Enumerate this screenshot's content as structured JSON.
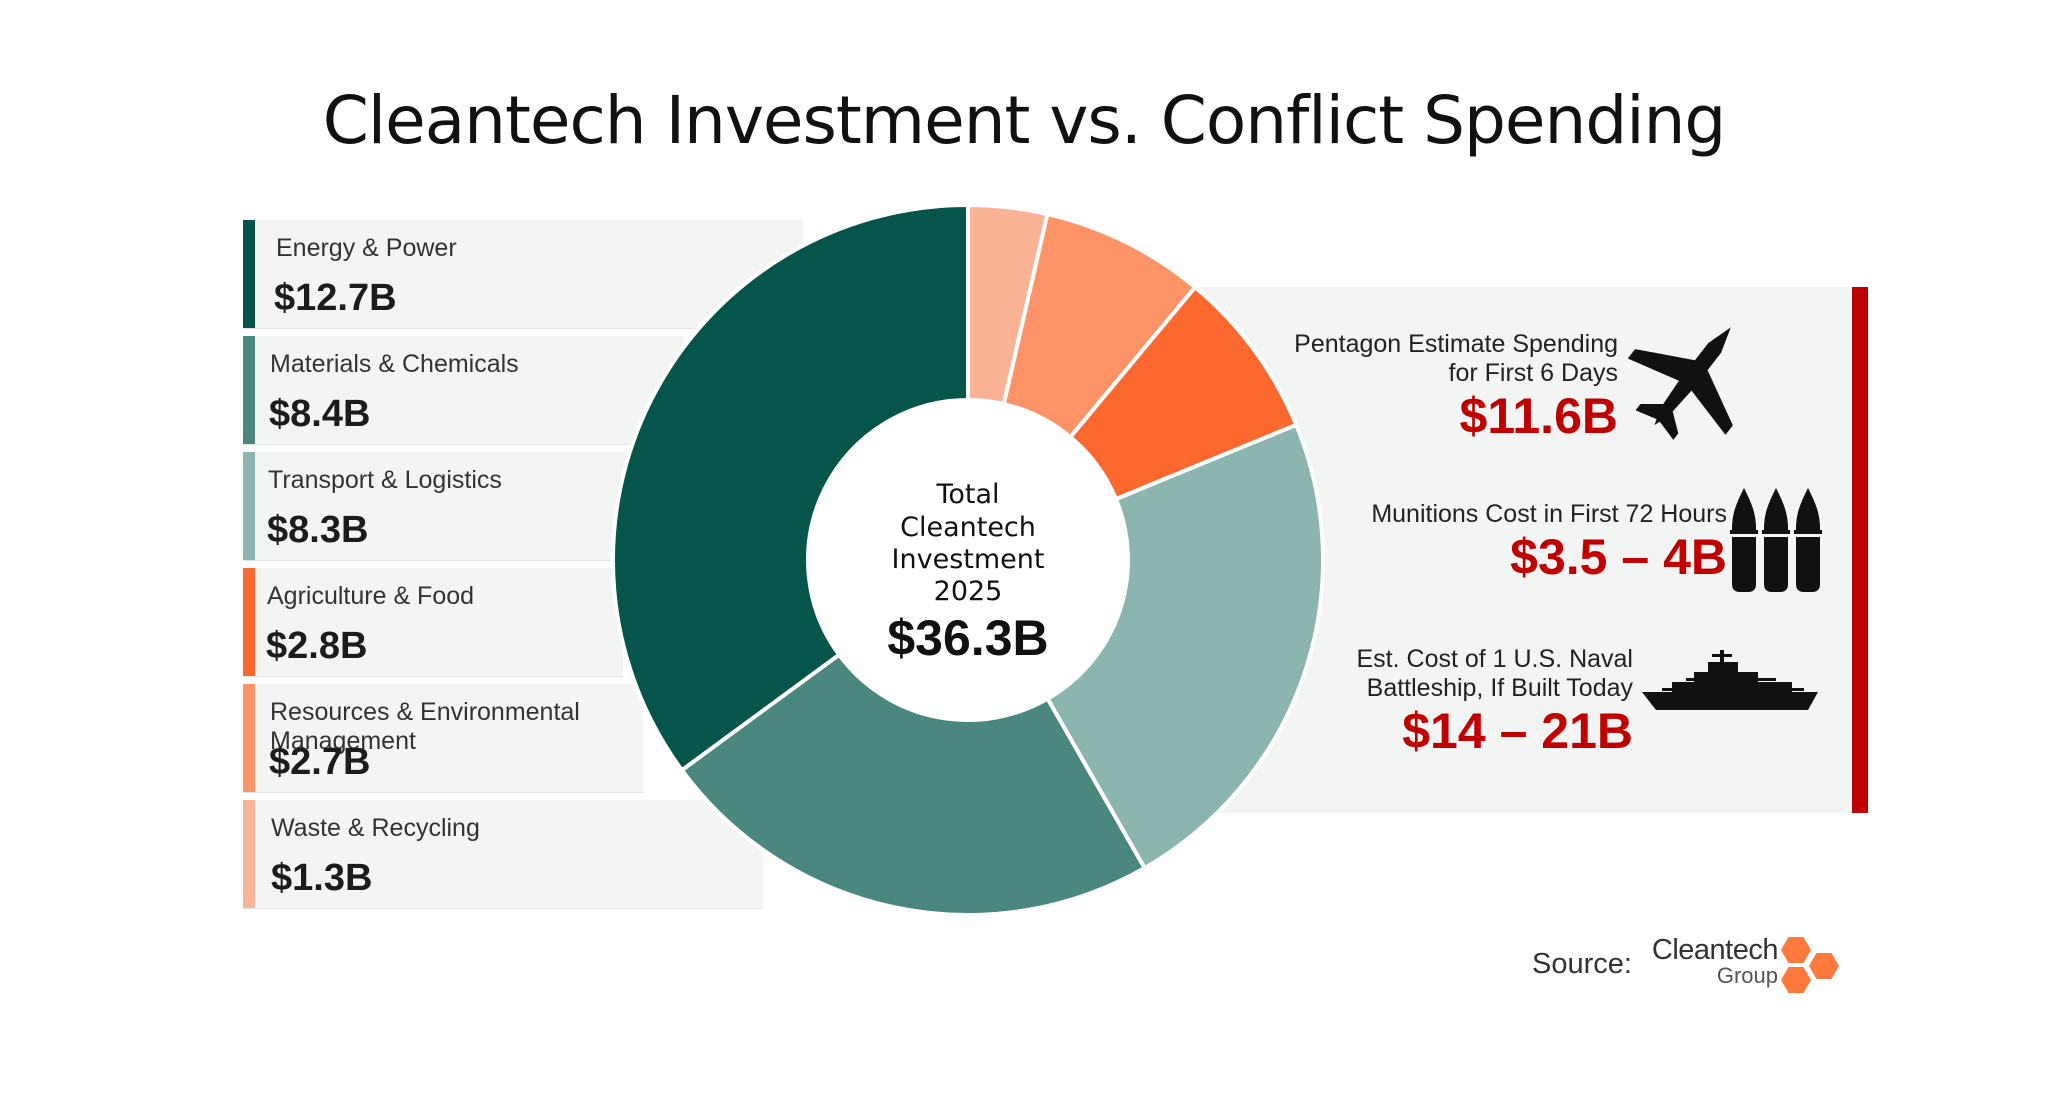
{
  "title": "Cleantech Investment vs. Conflict Spending",
  "chart_data": {
    "type": "pie",
    "title": "Cleantech Investment vs. Conflict Spending",
    "center_label": "Total Cleantech Investment 2025",
    "center_value": "$36.3B",
    "total": 36.3,
    "unit": "B USD",
    "slices": [
      {
        "label": "Waste & Recycling",
        "value": 1.3,
        "display": "$1.3B",
        "color": "#fbb396"
      },
      {
        "label": "Resources & Environmental Management",
        "value": 2.7,
        "display": "$2.7B",
        "color": "#fd9366"
      },
      {
        "label": "Agriculture & Food",
        "value": 2.8,
        "display": "$2.8B",
        "color": "#fd682f"
      },
      {
        "label": "Transport & Logistics",
        "value": 8.3,
        "display": "$8.3B",
        "color": "#8bb5ae"
      },
      {
        "label": "Materials & Chemicals",
        "value": 8.4,
        "display": "$8.4B",
        "color": "#4a877e"
      },
      {
        "label": "Energy & Power",
        "value": 12.7,
        "display": "$12.7B",
        "color": "#05554b"
      }
    ],
    "legend": [
      {
        "label": "Energy & Power",
        "value": "$12.7B",
        "color": "#05554b"
      },
      {
        "label": "Materials & Chemicals",
        "value": "$8.4B",
        "color": "#4a877e"
      },
      {
        "label": "Transport & Logistics",
        "value": "$8.3B",
        "color": "#8bb5ae"
      },
      {
        "label": "Agriculture & Food",
        "value": "$2.8B",
        "color": "#fd682f"
      },
      {
        "label": "Resources & Environmental Management",
        "value": "$2.7B",
        "color": "#fd9366"
      },
      {
        "label": "Waste & Recycling",
        "value": "$1.3B",
        "color": "#fbb396"
      }
    ]
  },
  "conflict": {
    "accent_color": "#c00000",
    "items": [
      {
        "label_line1": "Pentagon Estimate Spending",
        "label_line2": "for First 6 Days",
        "value": "$11.6B",
        "icon": "fighter-jet-icon"
      },
      {
        "label_line1": "Munitions Cost in First 72 Hours",
        "label_line2": "",
        "value": "$3.5 – 4B",
        "icon": "munitions-icon"
      },
      {
        "label_line1": "Est. Cost of 1 U.S. Naval",
        "label_line2": "Battleship, If Built Today",
        "value": "$14 – 21B",
        "icon": "battleship-icon"
      }
    ]
  },
  "source": {
    "label": "Source:",
    "org_main": "Cleantech",
    "org_sub": "Group",
    "logo_color": "#fd7a3c"
  }
}
